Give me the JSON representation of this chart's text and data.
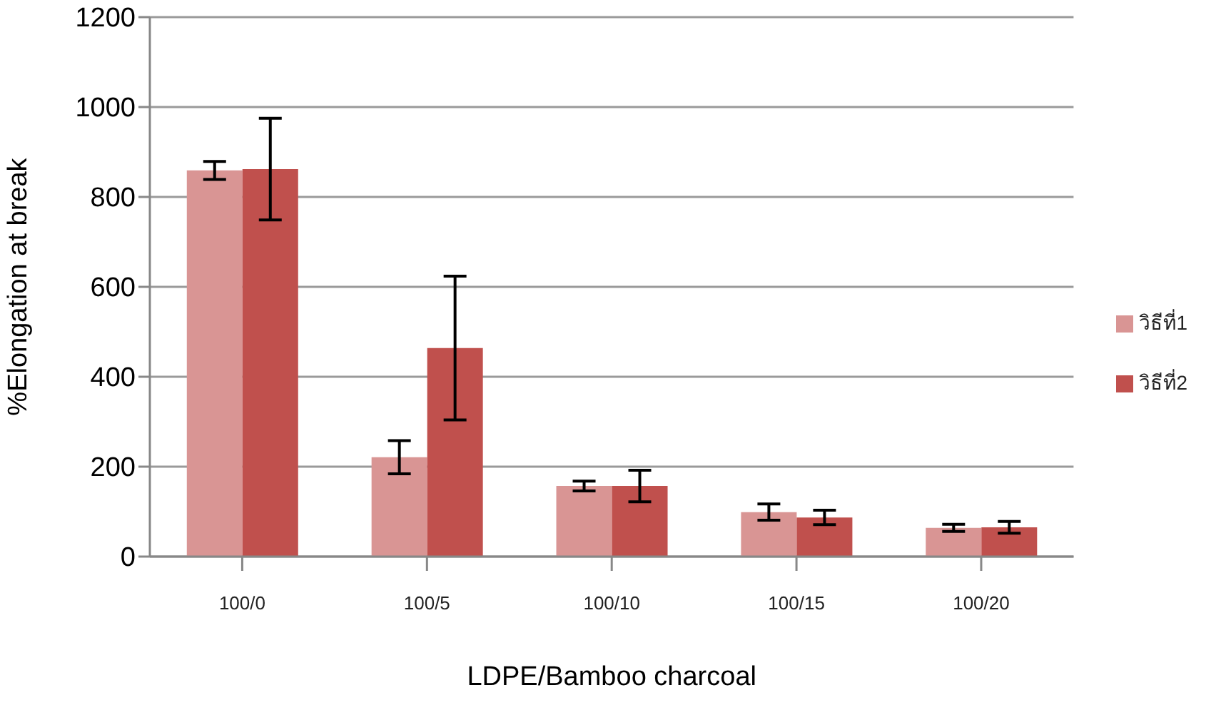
{
  "chart_data": {
    "type": "bar",
    "xlabel": "LDPE/Bamboo charcoal",
    "ylabel": "%Elongation at break",
    "categories": [
      "100/0",
      "100/5",
      "100/10",
      "100/15",
      "100/20"
    ],
    "series": [
      {
        "name": "วิธีที่1",
        "color": "#d99594",
        "values": [
          859,
          221,
          157,
          99,
          64
        ],
        "errors": [
          20,
          37,
          11,
          18,
          8
        ]
      },
      {
        "name": "วิธีที่2",
        "color": "#c0504d",
        "values": [
          862,
          464,
          157,
          87,
          65
        ],
        "errors": [
          113,
          160,
          35,
          16,
          13
        ]
      }
    ],
    "ylim": [
      0,
      1200
    ],
    "yticks": [
      0,
      200,
      400,
      600,
      800,
      1000,
      1200
    ],
    "grid": "y",
    "legend": "right"
  }
}
